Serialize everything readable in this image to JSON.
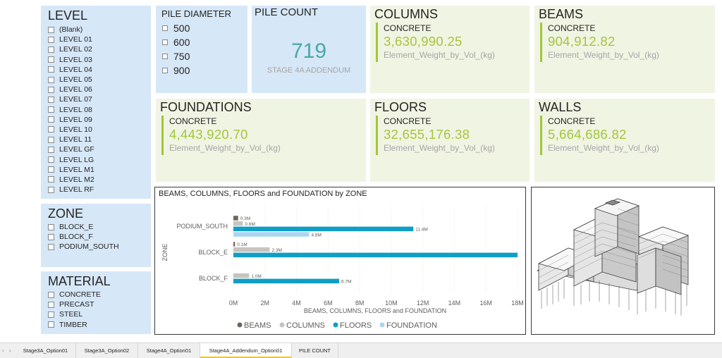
{
  "level_slicer": {
    "title": "LEVEL",
    "items": [
      "(Blank)",
      "LEVEL 01",
      "LEVEL 02",
      "LEVEL 03",
      "LEVEL 04",
      "LEVEL 05",
      "LEVEL 06",
      "LEVEL 07",
      "LEVEL 08",
      "LEVEL 09",
      "LEVEL 10",
      "LEVEL 11",
      "LEVEL GF",
      "LEVEL LG",
      "LEVEL M1",
      "LEVEL M2",
      "LEVEL RF"
    ]
  },
  "zone_slicer": {
    "title": "ZONE",
    "items": [
      "BLOCK_E",
      "BLOCK_F",
      "PODIUM_SOUTH"
    ]
  },
  "material_slicer": {
    "title": "MATERIAL",
    "items": [
      "CONCRETE",
      "PRECAST",
      "STEEL",
      "TIMBER"
    ]
  },
  "pile_diameter": {
    "title": "PILE DIAMETER",
    "items": [
      "500",
      "600",
      "750",
      "900"
    ]
  },
  "pile_count": {
    "title": "PILE COUNT",
    "value": "719",
    "label": "STAGE 4A ADDENDUM"
  },
  "cards": {
    "columns": {
      "title": "COLUMNS",
      "sub": "CONCRETE",
      "value": "3,630,990.25",
      "label": "Element_Weight_by_Vol_(kg)"
    },
    "beams": {
      "title": "BEAMS",
      "sub": "CONCRETE",
      "value": "904,912.82",
      "label": "Element_Weight_by_Vol_(kg)"
    },
    "foundations": {
      "title": "FOUNDATIONS",
      "sub": "CONCRETE",
      "value": "4,443,920.70",
      "label": "Element_Weight_by_Vol_(kg)"
    },
    "floors": {
      "title": "FLOORS",
      "sub": "CONCRETE",
      "value": "32,655,176.38",
      "label": "Element_Weight_by_Vol_(kg)"
    },
    "walls": {
      "title": "WALLS",
      "sub": "CONCRETE",
      "value": "5,664,686.82",
      "label": "Element_Weight_by_Vol_(kg)"
    }
  },
  "colors": {
    "accent_green": "#a4c639",
    "panel_blue": "#d6e7f7",
    "panel_green": "#f0f4e3",
    "beams": "#6f6559",
    "columns": "#c8c4bd",
    "floors": "#0e9ec6",
    "foundation": "#a9d7f3"
  },
  "chart_data": {
    "type": "bar",
    "orientation": "horizontal",
    "title": "BEAMS, COLUMNS, FLOORS and FOUNDATION by ZONE",
    "xlabel": "BEAMS, COLUMNS, FLOORS and FOUNDATION",
    "ylabel": "ZONE",
    "categories": [
      "PODIUM_SOUTH",
      "BLOCK_E",
      "BLOCK_F"
    ],
    "xlim": [
      0,
      18
    ],
    "x_ticks": [
      "0M",
      "2M",
      "4M",
      "6M",
      "8M",
      "10M",
      "12M",
      "14M",
      "16M",
      "18M"
    ],
    "legend_position": "bottom",
    "series": [
      {
        "name": "BEAMS",
        "color": "#6f6559",
        "values": [
          0.3,
          0.1,
          null
        ],
        "labels": [
          "0.3M",
          "0.1M",
          ""
        ]
      },
      {
        "name": "COLUMNS",
        "color": "#c8c4bd",
        "values": [
          0.6,
          2.3,
          1.0
        ],
        "labels": [
          "0.6M",
          "2.3M",
          "1.0M"
        ]
      },
      {
        "name": "FLOORS",
        "color": "#0e9ec6",
        "values": [
          11.4,
          18.0,
          6.7
        ],
        "labels": [
          "11.4M",
          "",
          "6.7M"
        ]
      },
      {
        "name": "FOUNDATION",
        "color": "#a9d7f3",
        "values": [
          4.8,
          null,
          null
        ],
        "labels": [
          "4.8M",
          "",
          ""
        ]
      }
    ]
  },
  "model_view": {
    "icon": "building-3d-model-icon"
  },
  "tabs": {
    "items": [
      "Stage3A_Option01",
      "Stage3A_Option02",
      "Stage4A_Option01",
      "Stage4A_Addendum_Option01",
      "PILE COUNT"
    ],
    "active": "Stage4A_Addendum_Option01",
    "prev_icon": "‹",
    "next_icon": "›"
  }
}
